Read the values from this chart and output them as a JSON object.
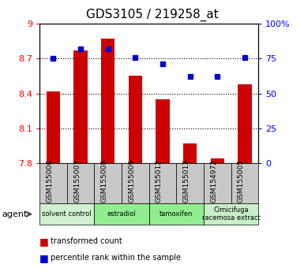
{
  "title": "GDS3105 / 219258_at",
  "samples": [
    "GSM155006",
    "GSM155007",
    "GSM155008",
    "GSM155009",
    "GSM155012",
    "GSM155013",
    "GSM154972",
    "GSM155005"
  ],
  "bar_values": [
    8.42,
    8.77,
    8.87,
    8.55,
    8.35,
    7.97,
    7.84,
    8.48
  ],
  "percentile_values": [
    75,
    82,
    82,
    76,
    71,
    62,
    62,
    76
  ],
  "ylim_left": [
    7.8,
    9.0
  ],
  "ylim_right": [
    0,
    100
  ],
  "yticks_left": [
    7.8,
    8.1,
    8.4,
    8.7,
    9.0
  ],
  "yticks_right": [
    0,
    25,
    50,
    75,
    100
  ],
  "ytick_labels_left": [
    "7.8",
    "8.1",
    "8.4",
    "8.7",
    "9"
  ],
  "ytick_labels_right": [
    "0",
    "25",
    "50",
    "75",
    "100%"
  ],
  "bar_color": "#cc0000",
  "dot_color": "#0000cc",
  "agent_groups": [
    {
      "label": "solvent control",
      "start": 0,
      "end": 2,
      "color": "#d0f0d0"
    },
    {
      "label": "estradiol",
      "start": 2,
      "end": 4,
      "color": "#90ee90"
    },
    {
      "label": "tamoxifen",
      "start": 4,
      "end": 6,
      "color": "#90ee90"
    },
    {
      "label": "Cimicifuga\nracemosa extract",
      "start": 6,
      "end": 8,
      "color": "#c8f0c8"
    }
  ],
  "agent_label": "agent",
  "legend_bar_label": "transformed count",
  "legend_dot_label": "percentile rank within the sample",
  "plot_bg_color": "#ffffff",
  "sample_bg_color": "#c8c8c8",
  "hgrid_values": [
    8.1,
    8.4,
    8.7
  ]
}
